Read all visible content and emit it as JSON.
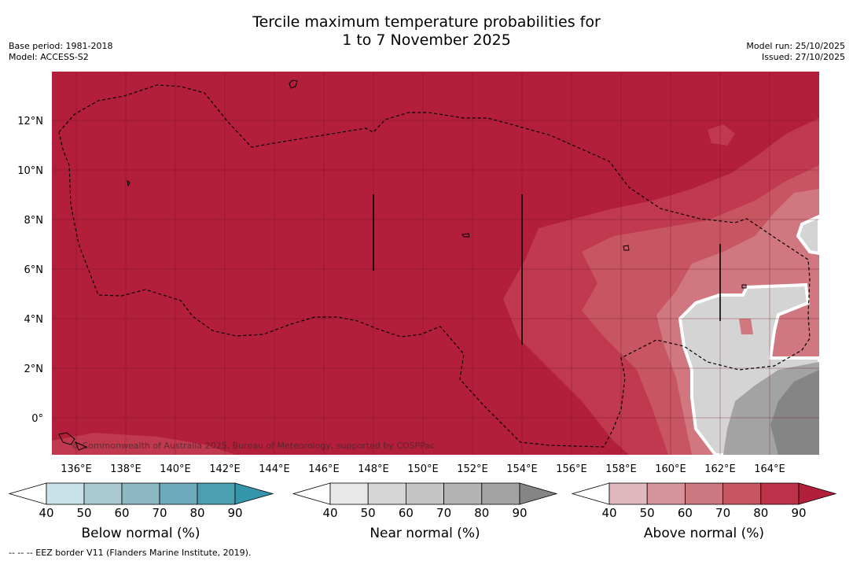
{
  "header": {
    "title_line1": "Tercile maximum temperature probabilities for",
    "title_line2": "1 to 7 November 2025",
    "base_period": "Base period: 1981-2018",
    "model": "Model: ACCESS-S2",
    "model_run": "Model run: 25/10/2025",
    "issued": "Issued: 27/10/2025"
  },
  "map": {
    "copyright": "© Commonwealth of Australia 2025, Bureau of Meteorology, supported by COSPPac",
    "x_ticks": [
      "136°E",
      "138°E",
      "140°E",
      "142°E",
      "144°E",
      "146°E",
      "148°E",
      "150°E",
      "152°E",
      "154°E",
      "156°E",
      "158°E",
      "160°E",
      "162°E",
      "164°E"
    ],
    "y_ticks": [
      "12°N",
      "10°N",
      "8°N",
      "6°N",
      "4°N",
      "2°N",
      "0°"
    ],
    "colors": {
      "above_90": "#b31e3b",
      "above_80": "#c0394f",
      "above_70": "#c75662",
      "above_60": "#d07780",
      "near_50": "#d4d4d4",
      "near_70": "#a3a3a3",
      "near_90": "#858585"
    }
  },
  "legends": [
    {
      "name": "Below normal (%)",
      "ticks": [
        "40",
        "50",
        "60",
        "70",
        "80",
        "90"
      ],
      "colors": [
        "#c9e2e8",
        "#a8c9d0",
        "#8bb8c3",
        "#6eabba",
        "#4b9fb1",
        "#3596ab"
      ]
    },
    {
      "name": "Near normal (%)",
      "ticks": [
        "40",
        "50",
        "60",
        "70",
        "80",
        "90"
      ],
      "colors": [
        "#e8e8e8",
        "#d5d5d5",
        "#c5c5c5",
        "#b3b3b3",
        "#a3a3a3",
        "#858585"
      ]
    },
    {
      "name": "Above normal (%)",
      "ticks": [
        "40",
        "50",
        "60",
        "70",
        "80",
        "90"
      ],
      "colors": [
        "#e0b9bf",
        "#d6959c",
        "#cd7781",
        "#c75662",
        "#bd3249",
        "#b31e3b"
      ]
    }
  ],
  "footer": "--  --  -- EEZ border V11 (Flanders Marine Institute, 2019)."
}
